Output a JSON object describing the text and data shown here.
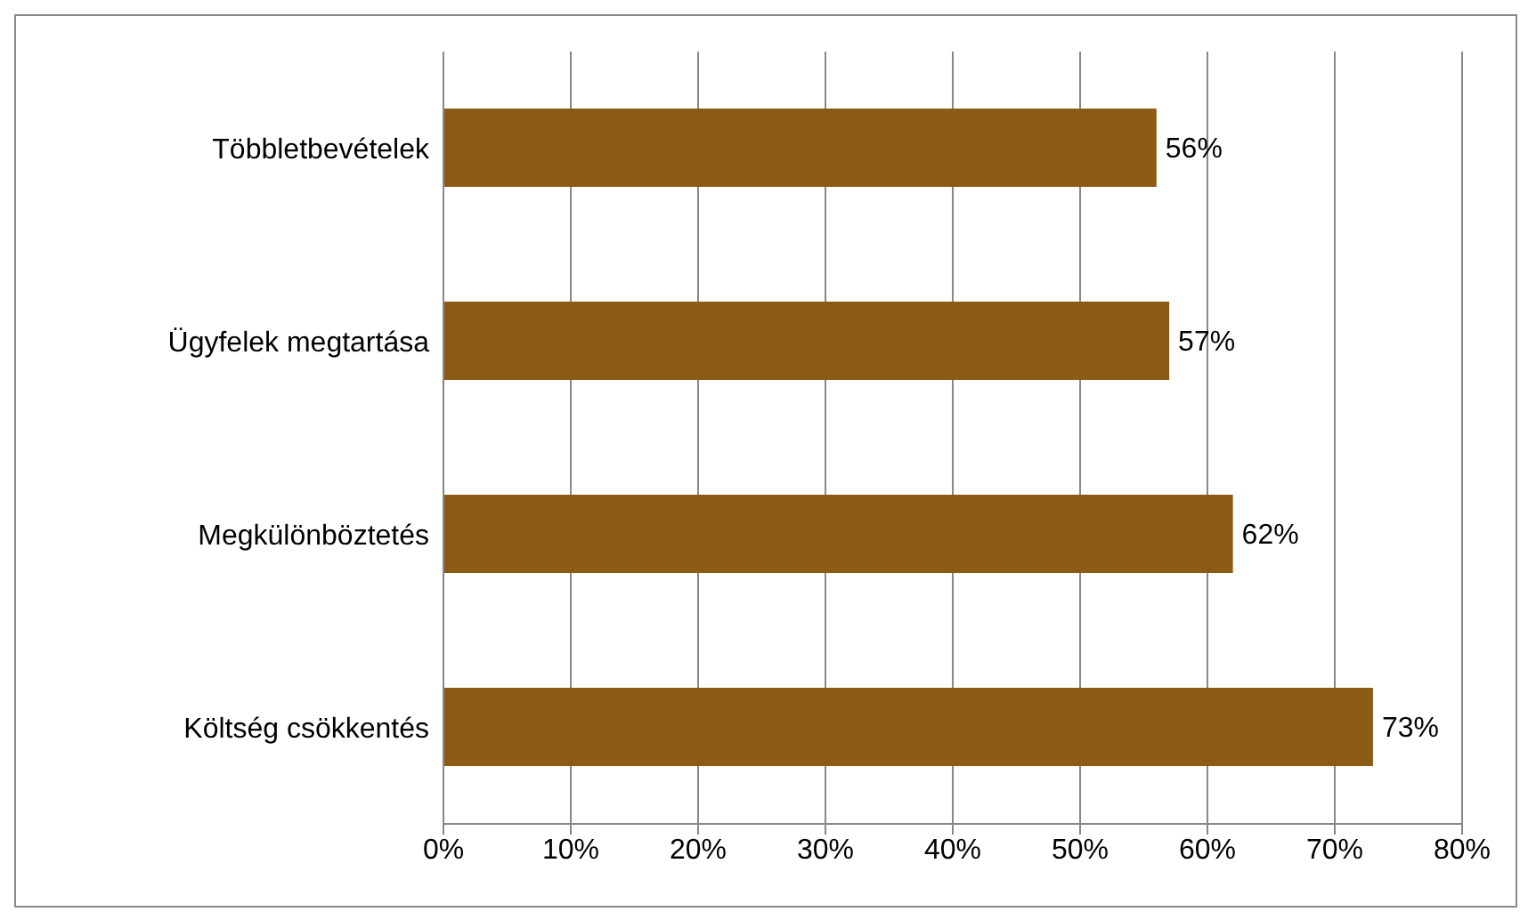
{
  "chart_data": {
    "type": "bar",
    "orientation": "horizontal",
    "categories": [
      "Többletbevételek",
      "Ügyfelek megtartása",
      "Megkülönböztetés",
      "Költség csökkentés"
    ],
    "values": [
      56,
      57,
      62,
      73
    ],
    "color": "#8b5a14",
    "value_labels": [
      "56%",
      "57%",
      "62%",
      "73%"
    ],
    "xlim": [
      0,
      80
    ],
    "xticks": [
      {
        "value": 0,
        "label": "0%"
      },
      {
        "value": 10,
        "label": "10%"
      },
      {
        "value": 20,
        "label": "20%"
      },
      {
        "value": 30,
        "label": "30%"
      },
      {
        "value": 40,
        "label": "40%"
      },
      {
        "value": 50,
        "label": "50%"
      },
      {
        "value": 60,
        "label": "60%"
      },
      {
        "value": 70,
        "label": "70%"
      },
      {
        "value": 80,
        "label": "80%"
      }
    ],
    "grid": "x"
  }
}
